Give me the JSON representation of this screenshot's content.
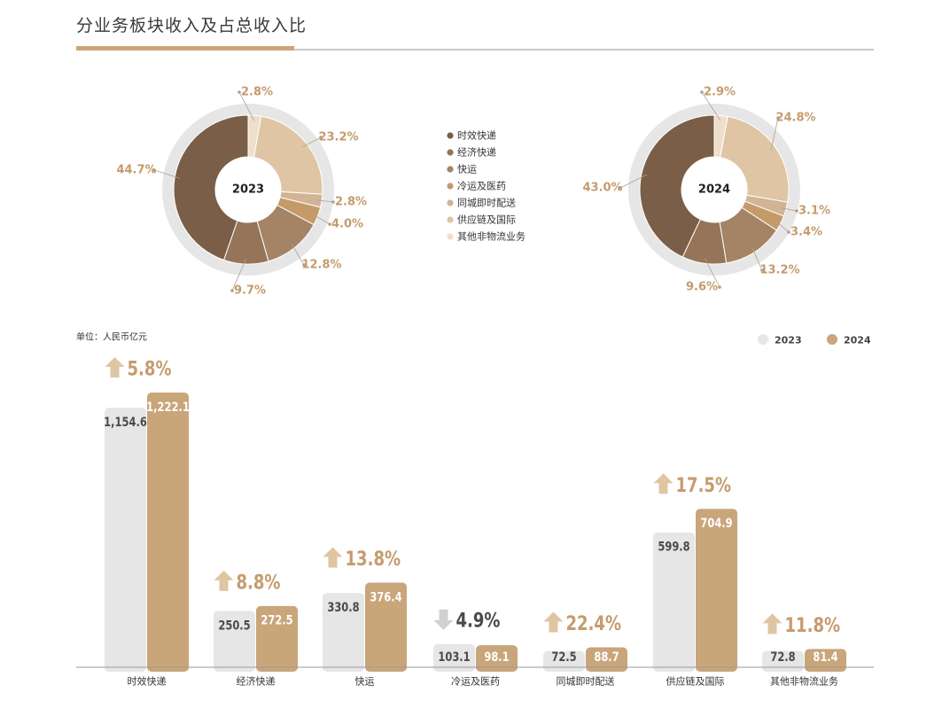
{
  "page": {
    "title": "分业务板块收入及占总收入比"
  },
  "chart_data": [
    {
      "type": "pie",
      "center_label": "2023",
      "categories": [
        "时效快递",
        "经济快递",
        "快运",
        "冷运及医药",
        "同城即时配送",
        "供应链及国际",
        "其他非物流业务"
      ],
      "values": [
        44.7,
        9.7,
        12.8,
        4.0,
        2.8,
        23.2,
        2.8
      ],
      "labels": [
        "44.7%",
        "9.7%",
        "12.8%",
        "4.0%",
        "2.8%",
        "23.2%",
        "2.8%"
      ]
    },
    {
      "type": "pie",
      "center_label": "2024",
      "categories": [
        "时效快递",
        "经济快递",
        "快运",
        "冷运及医药",
        "同城即时配送",
        "供应链及国际",
        "其他非物流业务"
      ],
      "values": [
        43.0,
        9.6,
        13.2,
        3.4,
        3.1,
        24.8,
        2.9
      ],
      "labels": [
        "43.0%",
        "9.6%",
        "13.2%",
        "3.4%",
        "3.1%",
        "24.8%",
        "2.9%"
      ]
    },
    {
      "type": "bar",
      "unit_label": "单位：人民币亿元",
      "categories": [
        "时效快递",
        "经济快递",
        "快运",
        "冷运及医药",
        "同城即时配送",
        "供应链及国际",
        "其他非物流业务"
      ],
      "series": [
        {
          "name": "2023",
          "values": [
            1154.6,
            250.5,
            330.8,
            103.1,
            72.5,
            599.8,
            72.8
          ],
          "labels": [
            "1,154.6",
            "250.5",
            "330.8",
            "103.1",
            "72.5",
            "599.8",
            "72.8"
          ]
        },
        {
          "name": "2024",
          "values": [
            1222.1,
            272.5,
            376.4,
            98.1,
            88.7,
            704.9,
            81.4
          ],
          "labels": [
            "1,222.1",
            "272.5",
            "376.4",
            "98.1",
            "88.7",
            "704.9",
            "81.4"
          ]
        }
      ],
      "growth": [
        "5.8%",
        "8.8%",
        "13.8%",
        "4.9%",
        "22.4%",
        "17.5%",
        "11.8%"
      ],
      "growth_direction": [
        "up",
        "up",
        "up",
        "down",
        "up",
        "up",
        "up"
      ],
      "ylim": [
        0,
        1222.1
      ],
      "legend_position": "top-right"
    }
  ],
  "legend": {
    "items": [
      "时效快递",
      "经济快递",
      "快运",
      "冷运及医药",
      "同城即时配送",
      "供应链及国际",
      "其他非物流业务"
    ]
  },
  "colors": {
    "segments": [
      "#7a5e47",
      "#957457",
      "#a48465",
      "#c59a69",
      "#d2b394",
      "#dfc5a4",
      "#efdfca"
    ],
    "ring": "#e6e6e6",
    "bar_2023": "#e6e6e6",
    "bar_2024": "#c9a57a",
    "accent_text": "#c59b6e",
    "dark_text": "#4a4a4a",
    "up_arrow": "#e0c5a3",
    "down_arrow": "#d0d0d0",
    "axis": "#9a9a9a"
  }
}
